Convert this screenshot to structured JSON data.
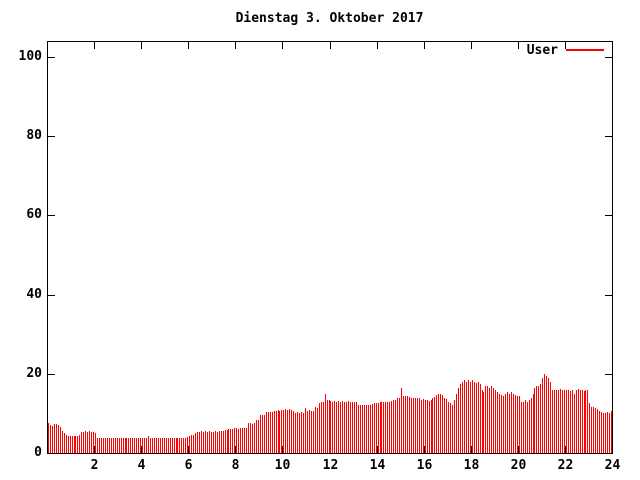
{
  "title": "Dienstag 3. Oktober 2017",
  "legend": {
    "label": "User"
  },
  "colors": {
    "series": "#ff0000",
    "axis": "#000000",
    "background": "#ffffff"
  },
  "chart_data": {
    "type": "bar",
    "title": "Dienstag 3. Oktober 2017",
    "xlabel": "",
    "ylabel": "",
    "grid": false,
    "legend_position": "top-right",
    "x": {
      "unit": "hours",
      "start": 0,
      "end": 24,
      "step_minutes": 5,
      "tick_values": [
        2,
        4,
        6,
        8,
        10,
        12,
        14,
        16,
        18,
        20,
        22,
        24
      ],
      "tick_labels": [
        "2",
        "4",
        "6",
        "8",
        "10",
        "12",
        "14",
        "16",
        "18",
        "20",
        "22",
        "24"
      ]
    },
    "y": {
      "ticks": [
        0,
        20,
        40,
        60,
        80,
        100
      ],
      "tick_labels": [
        "0",
        "20",
        "40",
        "60",
        "80",
        "100"
      ],
      "range_displayed": [
        0,
        104
      ]
    },
    "series": [
      {
        "name": "User",
        "color": "#ff0000",
        "style": "impulses",
        "values": [
          7.5,
          7.0,
          6.8,
          7.2,
          7.4,
          7.0,
          6.5,
          5.5,
          5.0,
          4.6,
          4.4,
          4.3,
          4.3,
          4.2,
          4.2,
          4.3,
          4.6,
          5.2,
          5.4,
          5.5,
          5.4,
          5.5,
          5.4,
          5.3,
          5.1,
          3.8,
          3.7,
          3.7,
          3.8,
          3.7,
          3.7,
          3.8,
          3.7,
          3.7,
          3.8,
          3.7,
          3.7,
          3.8,
          3.7,
          3.7,
          3.8,
          3.7,
          3.7,
          3.8,
          3.7,
          3.8,
          3.7,
          3.7,
          3.7,
          3.8,
          3.7,
          4.2,
          3.8,
          3.7,
          3.7,
          3.8,
          3.7,
          3.7,
          3.8,
          3.7,
          3.7,
          3.8,
          3.7,
          3.7,
          3.8,
          3.7,
          3.8,
          3.7,
          3.7,
          3.8,
          3.7,
          4.0,
          4.2,
          4.5,
          4.6,
          5.0,
          5.2,
          5.4,
          5.5,
          5.4,
          5.5,
          5.4,
          5.5,
          5.4,
          5.4,
          5.5,
          5.4,
          5.5,
          5.6,
          5.5,
          5.8,
          5.8,
          6.0,
          6.0,
          6.0,
          6.2,
          6.2,
          6.1,
          6.2,
          6.2,
          6.3,
          6.2,
          7.5,
          7.5,
          7.4,
          7.5,
          8.3,
          8.3,
          9.7,
          9.6,
          9.7,
          10.3,
          10.4,
          10.3,
          10.4,
          10.6,
          10.7,
          10.8,
          10.7,
          10.8,
          10.8,
          11.0,
          10.9,
          11.0,
          10.8,
          10.5,
          10.2,
          10.3,
          10.2,
          10.4,
          10.2,
          11.3,
          10.6,
          10.8,
          10.6,
          10.5,
          11.5,
          11.4,
          12.5,
          12.8,
          13.0,
          15.0,
          13.4,
          13.4,
          13.2,
          13.0,
          13.1,
          13.0,
          13.1,
          13.0,
          13.1,
          13.0,
          13.0,
          13.1,
          13.0,
          13.0,
          13.0,
          12.9,
          12.2,
          12.1,
          12.2,
          12.1,
          12.0,
          12.1,
          12.2,
          12.4,
          12.6,
          12.6,
          12.6,
          12.8,
          12.9,
          13.0,
          12.9,
          13.0,
          13.0,
          13.1,
          13.3,
          13.5,
          13.8,
          14.0,
          16.5,
          14.5,
          14.4,
          14.5,
          14.2,
          14.0,
          14.0,
          13.9,
          14.0,
          13.8,
          13.5,
          13.6,
          13.5,
          13.4,
          13.2,
          13.5,
          13.8,
          14.2,
          14.6,
          15.0,
          15.0,
          14.6,
          14.0,
          13.6,
          13.0,
          12.6,
          12.2,
          13.5,
          15.0,
          16.5,
          17.5,
          18.0,
          18.4,
          18.0,
          18.5,
          18.0,
          18.4,
          18.0,
          17.6,
          18.0,
          17.4,
          16.0,
          15.5,
          17.0,
          17.0,
          16.5,
          17.0,
          16.4,
          16.0,
          15.5,
          15.0,
          14.6,
          14.5,
          15.0,
          15.4,
          15.0,
          15.4,
          15.0,
          14.6,
          14.5,
          14.5,
          13.0,
          13.0,
          13.4,
          13.0,
          13.5,
          14.0,
          15.0,
          16.4,
          17.0,
          17.0,
          17.5,
          19.0,
          20.0,
          19.5,
          19.0,
          18.0,
          16.0,
          16.0,
          16.0,
          16.0,
          16.2,
          15.8,
          16.0,
          16.0,
          16.0,
          15.6,
          16.0,
          15.0,
          16.0,
          16.2,
          16.0,
          16.0,
          15.6,
          16.0,
          15.8,
          12.5,
          11.5,
          11.5,
          11.4,
          11.0,
          10.5,
          10.4,
          10.0,
          10.0,
          10.4,
          10.0,
          10.5
        ]
      }
    ]
  }
}
